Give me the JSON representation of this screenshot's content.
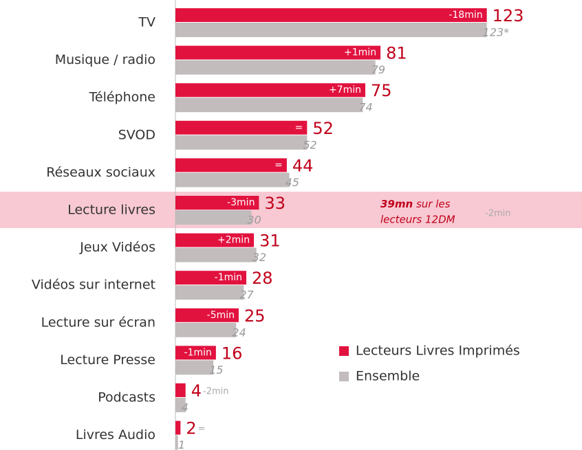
{
  "chart_data": {
    "type": "hbar",
    "categories": [
      "TV",
      "Musique / radio",
      "Téléphone",
      "SVOD",
      "Réseaux sociaux",
      "Lecture livres",
      "Jeux Vidéos",
      "Vidéos sur internet",
      "Lecture sur écran",
      "Lecture Presse",
      "Podcasts",
      "Livres Audio"
    ],
    "series": [
      {
        "name": "Lecteurs Livres Imprimés",
        "color": "#e2123f",
        "values": [
          123,
          81,
          75,
          52,
          44,
          33,
          31,
          28,
          25,
          16,
          4,
          2
        ]
      },
      {
        "name": "Ensemble",
        "color": "#c2bcbc",
        "values": [
          123,
          79,
          74,
          52,
          45,
          30,
          32,
          27,
          24,
          15,
          4,
          1
        ],
        "value_labels": [
          "123*",
          "79",
          "74",
          "52",
          "45",
          "30",
          "32",
          "27",
          "24",
          "15",
          "4",
          "1"
        ]
      }
    ],
    "change_labels": [
      "-18min",
      "+1min",
      "+7min",
      "=",
      "=",
      "-3min",
      "+2min",
      "-1min",
      "-5min",
      "-1min",
      "-2min",
      "="
    ],
    "highlight": 5,
    "annotation": {
      "bold": "39mn",
      "text": "sur les",
      "text2": "lecteurs 12DM",
      "change": "-2min"
    }
  }
}
